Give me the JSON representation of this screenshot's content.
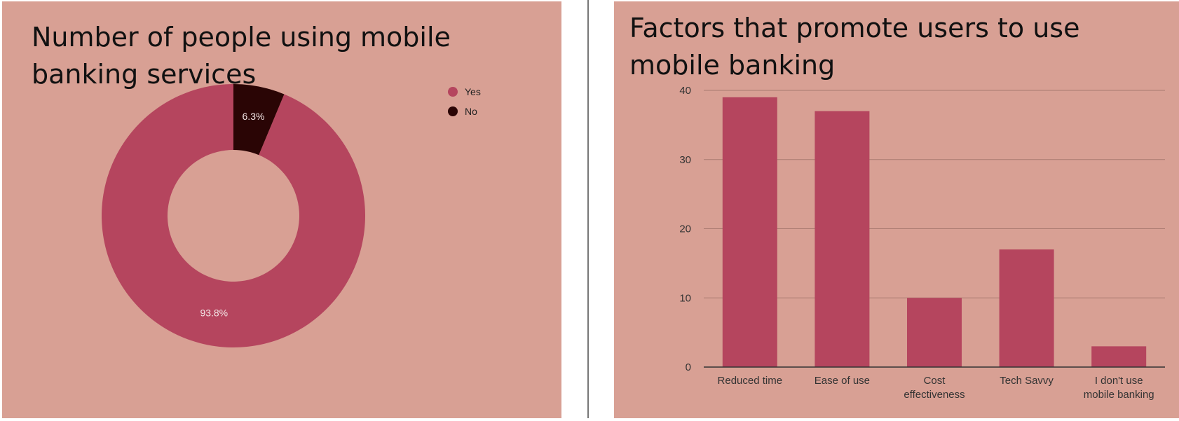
{
  "colors": {
    "panel_bg": "#d8a094",
    "yes": "#b5455e",
    "no": "#2a0505",
    "bar": "#b5455e",
    "grid": "#a97a70",
    "baseline": "#333333",
    "label_text": "#333333",
    "slice_label": "#f3e6e6"
  },
  "chart_data": [
    {
      "type": "pie",
      "donut": true,
      "title": "Number of people using mobile banking services",
      "slices": [
        {
          "label": "Yes",
          "value": 93.8,
          "display": "93.8%",
          "color": "#b5455e"
        },
        {
          "label": "No",
          "value": 6.3,
          "display": "6.3%",
          "color": "#2a0505"
        }
      ],
      "legend_position": "right"
    },
    {
      "type": "bar",
      "title": "Factors that promote users to use mobile banking",
      "categories": [
        [
          "Reduced time"
        ],
        [
          "Ease of use"
        ],
        [
          "Cost",
          "effectiveness"
        ],
        [
          "Tech Savvy"
        ],
        [
          "I don't use",
          "mobile banking"
        ]
      ],
      "values": [
        39,
        37,
        10,
        17,
        3
      ],
      "ylim": [
        0,
        40
      ],
      "yticks": [
        0,
        10,
        20,
        30,
        40
      ],
      "grid": true,
      "legend": false,
      "xlabel": "",
      "ylabel": ""
    }
  ]
}
